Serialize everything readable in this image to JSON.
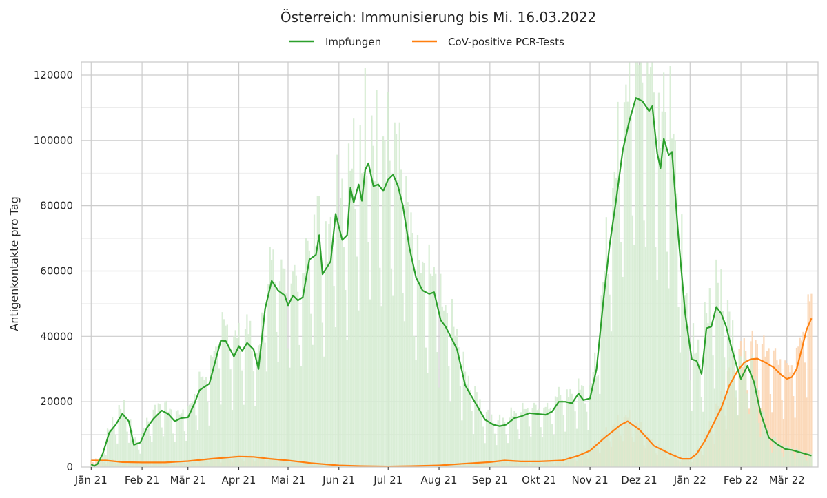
{
  "chart_data": {
    "type": "area",
    "title": "Österreich: Immunisierung bis Mi. 16.03.2022",
    "xlabel": "",
    "ylabel": "Antigenkontakte pro Tag",
    "ylim": [
      0,
      124000
    ],
    "yticks": [
      0,
      20000,
      40000,
      60000,
      80000,
      100000,
      120000
    ],
    "xlim": [
      "2020-12-26",
      "2022-03-20"
    ],
    "xticks": [
      {
        "date": "2021-01-01",
        "label": "Jän 21"
      },
      {
        "date": "2021-02-01",
        "label": "Feb 21"
      },
      {
        "date": "2021-03-01",
        "label": "Mär 21"
      },
      {
        "date": "2021-04-01",
        "label": "Apr 21"
      },
      {
        "date": "2021-05-01",
        "label": "Mai 21"
      },
      {
        "date": "2021-06-01",
        "label": "Jun 21"
      },
      {
        "date": "2021-07-01",
        "label": "Jul 21"
      },
      {
        "date": "2021-08-01",
        "label": "Aug 21"
      },
      {
        "date": "2021-09-01",
        "label": "Sep 21"
      },
      {
        "date": "2021-10-01",
        "label": "Okt 21"
      },
      {
        "date": "2021-11-01",
        "label": "Nov 21"
      },
      {
        "date": "2021-12-01",
        "label": "Dez 21"
      },
      {
        "date": "2022-01-01",
        "label": "Jän 22"
      },
      {
        "date": "2022-02-01",
        "label": "Feb 22"
      },
      {
        "date": "2022-03-01",
        "label": "Mär 22"
      }
    ],
    "grid": true,
    "legend_position": "top-center",
    "series": [
      {
        "name": "Impfungen",
        "color": "#2ca02c",
        "bar_color": "#d3ebd0",
        "smoothed": [
          [
            "2021-01-01",
            800
          ],
          [
            "2021-01-03",
            300
          ],
          [
            "2021-01-05",
            1000
          ],
          [
            "2021-01-08",
            4000
          ],
          [
            "2021-01-12",
            10500
          ],
          [
            "2021-01-16",
            13000
          ],
          [
            "2021-01-20",
            16300
          ],
          [
            "2021-01-24",
            14000
          ],
          [
            "2021-01-27",
            6800
          ],
          [
            "2021-01-31",
            7500
          ],
          [
            "2021-02-04",
            12000
          ],
          [
            "2021-02-08",
            14800
          ],
          [
            "2021-02-13",
            17300
          ],
          [
            "2021-02-17",
            16200
          ],
          [
            "2021-02-21",
            14000
          ],
          [
            "2021-02-25",
            15000
          ],
          [
            "2021-03-01",
            15200
          ],
          [
            "2021-03-05",
            19500
          ],
          [
            "2021-03-08",
            23500
          ],
          [
            "2021-03-14",
            25500
          ],
          [
            "2021-03-18",
            33000
          ],
          [
            "2021-03-21",
            38700
          ],
          [
            "2021-03-24",
            38600
          ],
          [
            "2021-03-29",
            33800
          ],
          [
            "2021-04-01",
            37000
          ],
          [
            "2021-04-03",
            35500
          ],
          [
            "2021-04-06",
            38000
          ],
          [
            "2021-04-10",
            36000
          ],
          [
            "2021-04-13",
            30000
          ],
          [
            "2021-04-17",
            48500
          ],
          [
            "2021-04-21",
            57000
          ],
          [
            "2021-04-25",
            54000
          ],
          [
            "2021-04-29",
            52500
          ],
          [
            "2021-05-01",
            49500
          ],
          [
            "2021-05-04",
            52500
          ],
          [
            "2021-05-07",
            51000
          ],
          [
            "2021-05-10",
            52000
          ],
          [
            "2021-05-14",
            63500
          ],
          [
            "2021-05-18",
            65000
          ],
          [
            "2021-05-20",
            71000
          ],
          [
            "2021-05-22",
            59000
          ],
          [
            "2021-05-27",
            63000
          ],
          [
            "2021-05-30",
            77500
          ],
          [
            "2021-06-03",
            69500
          ],
          [
            "2021-06-06",
            71000
          ],
          [
            "2021-06-08",
            85500
          ],
          [
            "2021-06-10",
            81000
          ],
          [
            "2021-06-13",
            86500
          ],
          [
            "2021-06-15",
            81500
          ],
          [
            "2021-06-17",
            91000
          ],
          [
            "2021-06-19",
            93000
          ],
          [
            "2021-06-22",
            86000
          ],
          [
            "2021-06-25",
            86500
          ],
          [
            "2021-06-28",
            84500
          ],
          [
            "2021-07-01",
            88000
          ],
          [
            "2021-07-04",
            89500
          ],
          [
            "2021-07-07",
            86000
          ],
          [
            "2021-07-10",
            80000
          ],
          [
            "2021-07-14",
            67000
          ],
          [
            "2021-07-18",
            58000
          ],
          [
            "2021-07-22",
            54000
          ],
          [
            "2021-07-26",
            53000
          ],
          [
            "2021-07-29",
            53500
          ],
          [
            "2021-08-02",
            45000
          ],
          [
            "2021-08-05",
            43000
          ],
          [
            "2021-08-08",
            40000
          ],
          [
            "2021-08-12",
            36000
          ],
          [
            "2021-08-17",
            25000
          ],
          [
            "2021-08-21",
            21500
          ],
          [
            "2021-08-25",
            18000
          ],
          [
            "2021-08-29",
            14500
          ],
          [
            "2021-09-03",
            13000
          ],
          [
            "2021-09-07",
            12500
          ],
          [
            "2021-09-11",
            13000
          ],
          [
            "2021-09-16",
            15000
          ],
          [
            "2021-09-20",
            15500
          ],
          [
            "2021-09-25",
            16500
          ],
          [
            "2021-10-01",
            16200
          ],
          [
            "2021-10-05",
            16000
          ],
          [
            "2021-10-09",
            17000
          ],
          [
            "2021-10-13",
            20000
          ],
          [
            "2021-10-17",
            20000
          ],
          [
            "2021-10-21",
            19500
          ],
          [
            "2021-10-25",
            22500
          ],
          [
            "2021-10-28",
            20500
          ],
          [
            "2021-11-01",
            21000
          ],
          [
            "2021-11-05",
            30000
          ],
          [
            "2021-11-09",
            50000
          ],
          [
            "2021-11-13",
            68000
          ],
          [
            "2021-11-17",
            82000
          ],
          [
            "2021-11-21",
            97000
          ],
          [
            "2021-11-25",
            106000
          ],
          [
            "2021-11-29",
            113000
          ],
          [
            "2021-12-03",
            112000
          ],
          [
            "2021-12-07",
            109000
          ],
          [
            "2021-12-09",
            110500
          ],
          [
            "2021-12-12",
            96000
          ],
          [
            "2021-12-14",
            91500
          ],
          [
            "2021-12-16",
            100500
          ],
          [
            "2021-12-19",
            95500
          ],
          [
            "2021-12-21",
            96500
          ],
          [
            "2021-12-25",
            70000
          ],
          [
            "2021-12-29",
            47000
          ],
          [
            "2022-01-02",
            33000
          ],
          [
            "2022-01-05",
            32500
          ],
          [
            "2022-01-08",
            28500
          ],
          [
            "2022-01-11",
            42500
          ],
          [
            "2022-01-14",
            43000
          ],
          [
            "2022-01-17",
            49000
          ],
          [
            "2022-01-20",
            47000
          ],
          [
            "2022-01-23",
            43000
          ],
          [
            "2022-01-26",
            37000
          ],
          [
            "2022-01-30",
            30000
          ],
          [
            "2022-02-01",
            27000
          ],
          [
            "2022-02-05",
            31000
          ],
          [
            "2022-02-09",
            26000
          ],
          [
            "2022-02-13",
            16500
          ],
          [
            "2022-02-18",
            9000
          ],
          [
            "2022-02-23",
            7000
          ],
          [
            "2022-02-28",
            5500
          ],
          [
            "2022-03-04",
            5200
          ],
          [
            "2022-03-09",
            4500
          ],
          [
            "2022-03-16",
            3500
          ]
        ]
      },
      {
        "name": "CoV-positive PCR-Tests",
        "color": "#ff7f0e",
        "bar_color": "#fbd5b3",
        "smoothed": [
          [
            "2021-01-01",
            2000
          ],
          [
            "2021-01-10",
            2000
          ],
          [
            "2021-01-20",
            1500
          ],
          [
            "2021-02-01",
            1400
          ],
          [
            "2021-02-15",
            1400
          ],
          [
            "2021-03-01",
            1800
          ],
          [
            "2021-03-15",
            2500
          ],
          [
            "2021-04-01",
            3200
          ],
          [
            "2021-04-10",
            3100
          ],
          [
            "2021-04-20",
            2500
          ],
          [
            "2021-05-01",
            2000
          ],
          [
            "2021-05-15",
            1200
          ],
          [
            "2021-06-01",
            500
          ],
          [
            "2021-06-15",
            300
          ],
          [
            "2021-07-01",
            200
          ],
          [
            "2021-07-15",
            300
          ],
          [
            "2021-08-01",
            500
          ],
          [
            "2021-08-15",
            1000
          ],
          [
            "2021-09-01",
            1500
          ],
          [
            "2021-09-10",
            2000
          ],
          [
            "2021-09-20",
            1700
          ],
          [
            "2021-10-01",
            1700
          ],
          [
            "2021-10-15",
            2000
          ],
          [
            "2021-10-25",
            3500
          ],
          [
            "2021-11-01",
            5000
          ],
          [
            "2021-11-10",
            9000
          ],
          [
            "2021-11-20",
            13000
          ],
          [
            "2021-11-24",
            14000
          ],
          [
            "2021-12-01",
            11500
          ],
          [
            "2021-12-10",
            6500
          ],
          [
            "2021-12-20",
            4000
          ],
          [
            "2021-12-27",
            2500
          ],
          [
            "2022-01-01",
            2500
          ],
          [
            "2022-01-05",
            4000
          ],
          [
            "2022-01-10",
            8000
          ],
          [
            "2022-01-15",
            13000
          ],
          [
            "2022-01-20",
            18000
          ],
          [
            "2022-01-25",
            25000
          ],
          [
            "2022-01-30",
            29500
          ],
          [
            "2022-02-03",
            32000
          ],
          [
            "2022-02-07",
            33000
          ],
          [
            "2022-02-11",
            33200
          ],
          [
            "2022-02-16",
            32000
          ],
          [
            "2022-02-21",
            30500
          ],
          [
            "2022-02-26",
            28000
          ],
          [
            "2022-03-01",
            27000
          ],
          [
            "2022-03-04",
            27500
          ],
          [
            "2022-03-07",
            30000
          ],
          [
            "2022-03-10",
            36000
          ],
          [
            "2022-03-13",
            42000
          ],
          [
            "2022-03-16",
            45500
          ]
        ]
      }
    ]
  }
}
